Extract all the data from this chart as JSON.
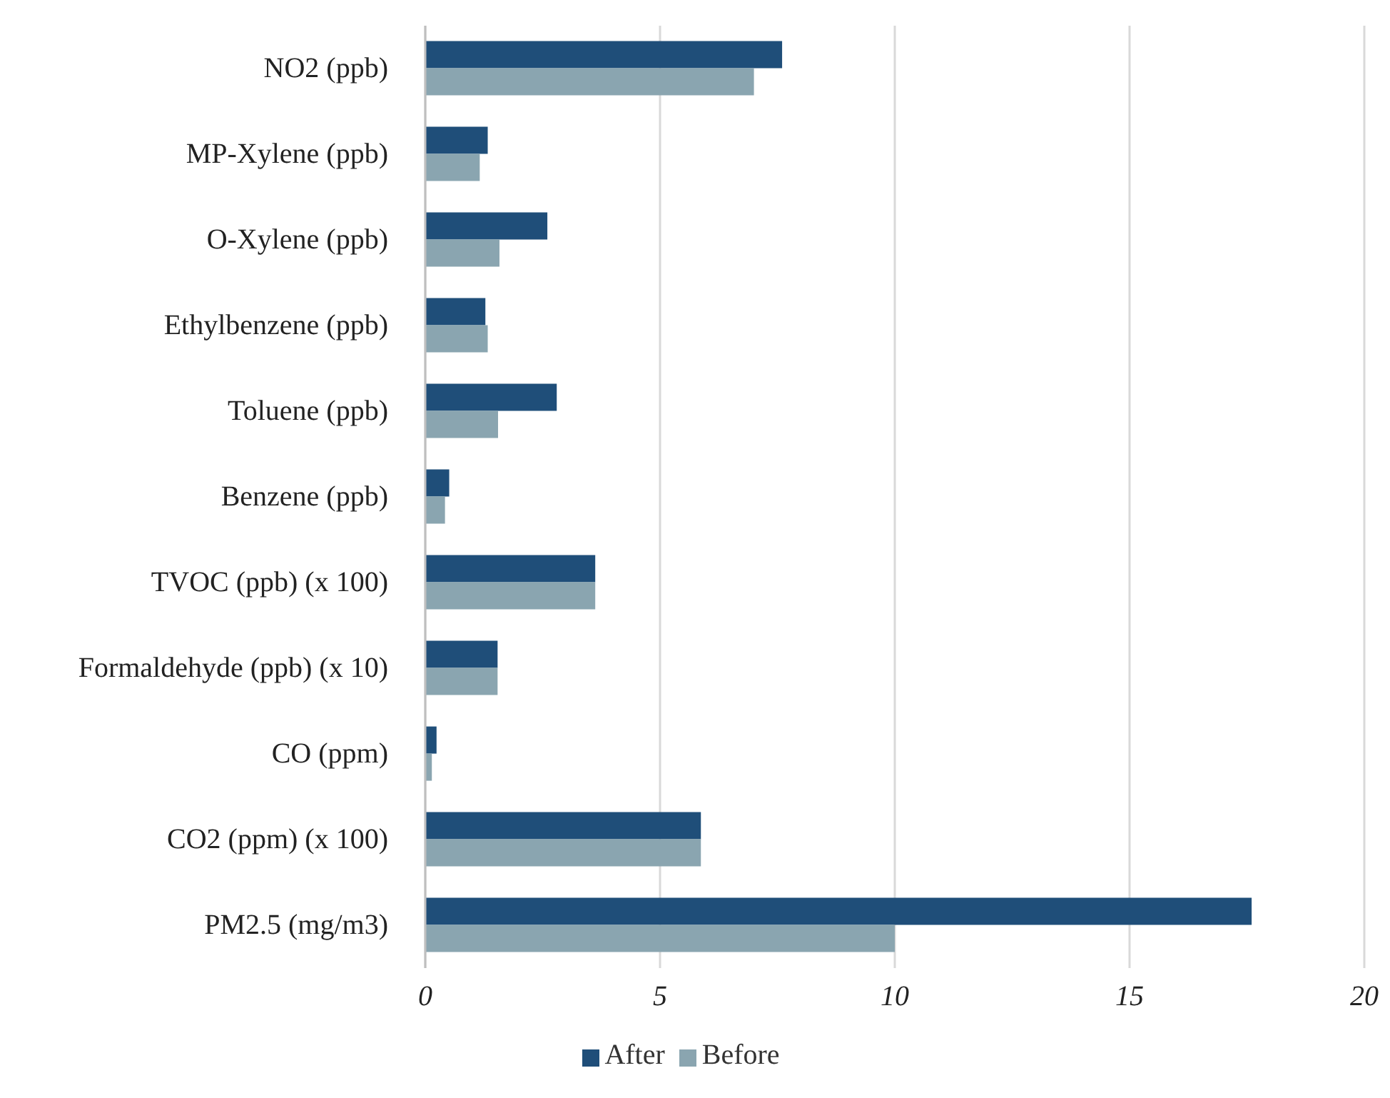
{
  "chart_data": {
    "type": "bar",
    "orientation": "horizontal",
    "categories": [
      "NO2 (ppb)",
      "MP-Xylene (ppb)",
      "O-Xylene (ppb)",
      "Ethylbenzene (ppb)",
      "Toluene (ppb)",
      "Benzene (ppb)",
      "TVOC (ppb) (x 100)",
      "Formaldehyde (ppb) (x 10)",
      "CO (ppm)",
      "CO2 (ppm) (x 100)",
      "PM2.5 (mg/m3)"
    ],
    "series": [
      {
        "name": "After",
        "color": "#1f4e79",
        "values": [
          7.6,
          1.33,
          2.6,
          1.28,
          2.8,
          0.51,
          3.62,
          1.54,
          0.24,
          5.87,
          17.6
        ]
      },
      {
        "name": "Before",
        "color": "#8aa5b0",
        "values": [
          7.0,
          1.16,
          1.58,
          1.33,
          1.55,
          0.42,
          3.62,
          1.54,
          0.14,
          5.87,
          10.0
        ]
      }
    ],
    "xlim": [
      0,
      20
    ],
    "xticks": [
      0,
      5,
      10,
      15,
      20
    ],
    "grid": "x",
    "legend": "bottom"
  }
}
